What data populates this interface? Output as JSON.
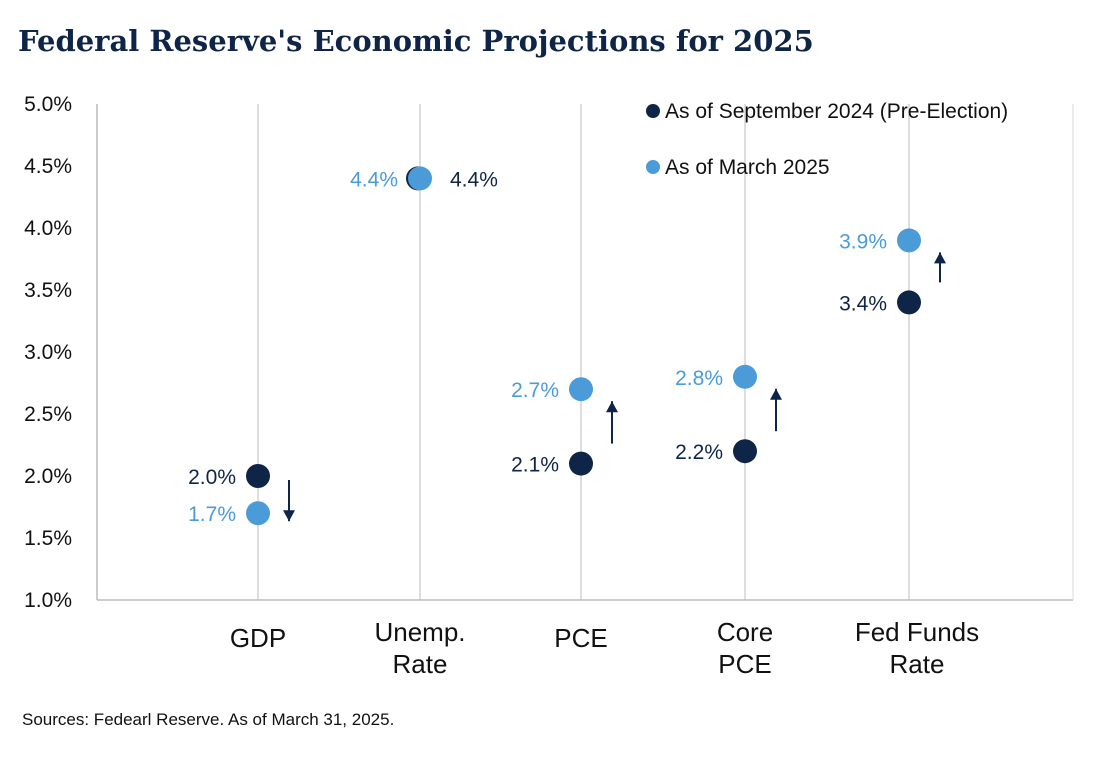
{
  "title": "Federal Reserve's Economic Projections for 2025",
  "source": "Sources: Fedearl Reserve. As of March 31, 2025.",
  "colors": {
    "title": "#0f2548",
    "sep2024": "#0f2548",
    "mar2025": "#4a9bd8",
    "grid": "#d4d4d4",
    "arrow": "#0f2548"
  },
  "chart_data": {
    "type": "scatter",
    "categories": [
      [
        "GDP"
      ],
      [
        "Unemp.",
        "Rate"
      ],
      [
        "PCE"
      ],
      [
        "Core",
        "PCE"
      ],
      [
        "Fed Funds",
        "Rate"
      ]
    ],
    "series": [
      {
        "name": "As of September 2024 (Pre-Election)",
        "values": [
          2.0,
          4.4,
          2.1,
          2.2,
          3.4
        ],
        "labels": [
          "2.0%",
          "4.4%",
          "2.1%",
          "2.2%",
          "3.4%"
        ]
      },
      {
        "name": "As of March 2025",
        "values": [
          1.7,
          4.4,
          2.7,
          2.8,
          3.9
        ],
        "labels": [
          "1.7%",
          "4.4%",
          "2.7%",
          "2.8%",
          "3.9%"
        ]
      }
    ],
    "y_ticks": [
      "1.0%",
      "1.5%",
      "2.0%",
      "2.5%",
      "3.0%",
      "3.5%",
      "4.0%",
      "4.5%",
      "5.0%"
    ],
    "ylim": [
      1.0,
      5.0
    ],
    "grid": "vertical",
    "legend_position": "top-right",
    "change_arrows": [
      "down",
      "none",
      "up",
      "up",
      "up"
    ]
  }
}
